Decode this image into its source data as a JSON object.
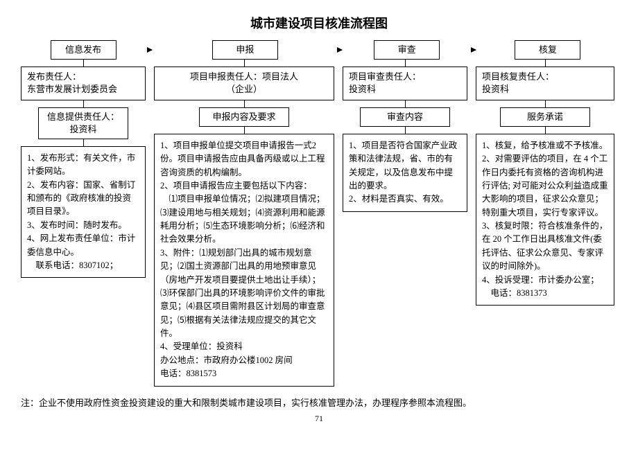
{
  "title": "城市建设项目核准流程图",
  "stages": {
    "s1": "信息发布",
    "s2": "申报",
    "s3": "审查",
    "s4": "核复"
  },
  "responsible": {
    "r1_l1": "发布责任人：",
    "r1_l2": "东营市发展计划委员会",
    "r2_l1": "项目申报责任人：项目法人",
    "r2_l2": "（企业）",
    "r3_l1": "项目审查责任人：",
    "r3_l2": "投资科",
    "r4_l1": "项目核复责任人：",
    "r4_l2": "投资科"
  },
  "sub": {
    "b1_l1": "信息提供责任人：",
    "b1_l2": "投资科",
    "b2": "申报内容及要求",
    "b3": "审查内容",
    "b4": "服务承诺"
  },
  "details": {
    "d1_1": "1、发布形式：有关文件，市计委网站。",
    "d1_2": "2、发布内容：国家、省制订和颁布的《政府核准的投资项目目录》。",
    "d1_3": "3、发布时间：随时发布。",
    "d1_4": "4、网上发布责任单位：市计委信息中心。",
    "d1_5": "联系电话：8307102；",
    "d2_1": "1、项目申报单位提交项目申请报告一式2 份。项目申请报告应由具备丙级或以上工程咨询资质的机构编制。",
    "d2_2": "2、项目申请报告应主要包括以下内容：",
    "d2_3": "⑴项目申报单位情况；⑵拟建项目情况；⑶建设用地与相关规划；⑷资源利用和能源耗用分析；⑸生态环境影响分析；⑹经济和社会效果分析。",
    "d2_4": "3、附件：⑴规划部门出具的城市规划意见；⑵国土资源部门出具的用地预审意见（房地产开发项目要提供土地出让手续）；⑶环保部门出具的环境影响评价文件的审批意见；⑷县区项目需附县区计划局的审查意见；⑸根据有关法律法规应提交的其它文件。",
    "d2_5": "4、受理单位：投资科",
    "d2_6": "办公地点：市政府办公楼1002 房间",
    "d2_7": "电话：8381573",
    "d3_1": "1、项目是否符合国家产业政策和法律法规，省、市的有关规定，以及信息发布中提出的要求。",
    "d3_2": "2、材料是否真实、有效。",
    "d4_1": "1、核复，给予核准或不予核准。",
    "d4_2": "2、对需要评估的项目，在 4 个工作日内委托有资格的咨询机构进行评估; 对可能对公众利益造成重大影响的项目，征求公众意见；特别重大项目，实行专家评议。",
    "d4_3": "3、核复时限：符合核准条件的，在 20 个工作日出具核准文件(委托评估、征求公众意见、专家评议的时间除外)。",
    "d4_4": "4、投诉受理：市计委办公室；",
    "d4_5": "电话：8381373"
  },
  "note": "注：企业不使用政府性资金投资建设的重大和限制类城市建设项目，实行核准管理办法，办理程序参照本流程图。",
  "page": "71"
}
